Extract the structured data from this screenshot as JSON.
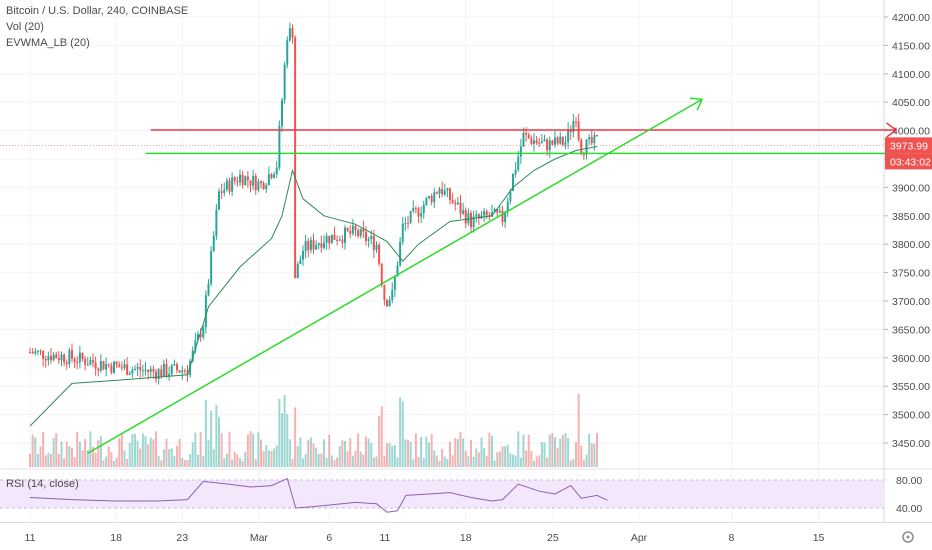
{
  "legend": {
    "title": "Bitcoin / U.S. Dollar, 240, COINBASE",
    "volume": "Vol (20)",
    "evwma": "EVWMA_LB (20)",
    "rsi": "RSI (14, close)"
  },
  "last_price": {
    "value": "3973.99",
    "countdown": "03:43:02"
  },
  "colors": {
    "up": "#26a69a",
    "down": "#ef5350",
    "resistance": "#f23645",
    "support": "#2bdc2b",
    "rsi_band": "#f3e8fb",
    "rsi_line": "#8e5fb5",
    "price_tag": "#ef5350"
  },
  "chart_data": [
    {
      "type": "candlestick",
      "title": "Bitcoin / U.S. Dollar, 240, COINBASE",
      "price_ticks": [
        "4200.00",
        "4150.00",
        "4100.00",
        "4050.00",
        "4000.00",
        "3950.00",
        "3900.00",
        "3850.00",
        "3800.00",
        "3750.00",
        "3700.00",
        "3650.00",
        "3600.00",
        "3550.00",
        "3500.00",
        "3450.00"
      ],
      "ylim": [
        3430,
        4215
      ],
      "date_ticks": [
        "11",
        "18",
        "23",
        "Mar",
        "6",
        "11",
        "18",
        "25",
        "Apr",
        "8",
        "15"
      ],
      "price_path": [
        {
          "t": 0.0,
          "p": 3610
        },
        {
          "t": 4.0,
          "p": 3600
        },
        {
          "t": 8.0,
          "p": 3585
        },
        {
          "t": 12.0,
          "p": 3575
        },
        {
          "t": 15.0,
          "p": 3580
        },
        {
          "t": 16.5,
          "p": 3660
        },
        {
          "t": 18.0,
          "p": 3890
        },
        {
          "t": 20.0,
          "p": 3920
        },
        {
          "t": 22.0,
          "p": 3905
        },
        {
          "t": 23.5,
          "p": 3940
        },
        {
          "t": 24.5,
          "p": 4170
        },
        {
          "t": 25.0,
          "p": 4175
        },
        {
          "t": 25.2,
          "p": 3740
        },
        {
          "t": 26.0,
          "p": 3790
        },
        {
          "t": 28.0,
          "p": 3810
        },
        {
          "t": 31.0,
          "p": 3820
        },
        {
          "t": 33.0,
          "p": 3800
        },
        {
          "t": 33.8,
          "p": 3700
        },
        {
          "t": 34.5,
          "p": 3710
        },
        {
          "t": 35.5,
          "p": 3830
        },
        {
          "t": 37.0,
          "p": 3860
        },
        {
          "t": 39.0,
          "p": 3900
        },
        {
          "t": 40.5,
          "p": 3870
        },
        {
          "t": 42.0,
          "p": 3840
        },
        {
          "t": 44.0,
          "p": 3850
        },
        {
          "t": 45.0,
          "p": 3845
        },
        {
          "t": 46.0,
          "p": 3920
        },
        {
          "t": 47.0,
          "p": 3990
        },
        {
          "t": 49.0,
          "p": 3975
        },
        {
          "t": 51.0,
          "p": 3980
        },
        {
          "t": 52.0,
          "p": 4030
        },
        {
          "t": 52.4,
          "p": 3970
        },
        {
          "t": 54.0,
          "p": 3980
        },
        {
          "t": 54.2,
          "p": 3974
        }
      ],
      "evwma_path": [
        {
          "t": 0.0,
          "p": 3480
        },
        {
          "t": 4.0,
          "p": 3555
        },
        {
          "t": 8.0,
          "p": 3560
        },
        {
          "t": 15.0,
          "p": 3570
        },
        {
          "t": 17.0,
          "p": 3690
        },
        {
          "t": 20.0,
          "p": 3760
        },
        {
          "t": 23.0,
          "p": 3810
        },
        {
          "t": 24.0,
          "p": 3850
        },
        {
          "t": 25.0,
          "p": 3930
        },
        {
          "t": 26.0,
          "p": 3880
        },
        {
          "t": 28.0,
          "p": 3850
        },
        {
          "t": 31.0,
          "p": 3835
        },
        {
          "t": 34.0,
          "p": 3805
        },
        {
          "t": 35.5,
          "p": 3770
        },
        {
          "t": 37.0,
          "p": 3800
        },
        {
          "t": 40.0,
          "p": 3840
        },
        {
          "t": 44.0,
          "p": 3850
        },
        {
          "t": 46.0,
          "p": 3900
        },
        {
          "t": 48.0,
          "p": 3930
        },
        {
          "t": 50.0,
          "p": 3950
        },
        {
          "t": 52.0,
          "p": 3965
        },
        {
          "t": 54.0,
          "p": 3972
        }
      ],
      "volume_range": [
        0,
        1
      ]
    },
    {
      "type": "line",
      "name": "RSI (14, close)",
      "y_ticks": [
        "80.00",
        "40.00"
      ],
      "ylim": [
        30,
        90
      ],
      "band": [
        40,
        80
      ],
      "path": [
        {
          "t": 0.0,
          "v": 55
        },
        {
          "t": 4.0,
          "v": 52
        },
        {
          "t": 8.0,
          "v": 50
        },
        {
          "t": 12.0,
          "v": 50
        },
        {
          "t": 15.0,
          "v": 52
        },
        {
          "t": 16.5,
          "v": 78
        },
        {
          "t": 19.0,
          "v": 74
        },
        {
          "t": 21.0,
          "v": 70
        },
        {
          "t": 23.0,
          "v": 72
        },
        {
          "t": 24.5,
          "v": 82
        },
        {
          "t": 25.3,
          "v": 40
        },
        {
          "t": 27.0,
          "v": 42
        },
        {
          "t": 31.0,
          "v": 48
        },
        {
          "t": 33.0,
          "v": 46
        },
        {
          "t": 34.0,
          "v": 34
        },
        {
          "t": 35.0,
          "v": 36
        },
        {
          "t": 35.8,
          "v": 58
        },
        {
          "t": 38.0,
          "v": 60
        },
        {
          "t": 40.0,
          "v": 62
        },
        {
          "t": 42.0,
          "v": 55
        },
        {
          "t": 44.0,
          "v": 50
        },
        {
          "t": 45.0,
          "v": 52
        },
        {
          "t": 46.5,
          "v": 74
        },
        {
          "t": 48.5,
          "v": 64
        },
        {
          "t": 50.0,
          "v": 60
        },
        {
          "t": 51.5,
          "v": 72
        },
        {
          "t": 52.5,
          "v": 54
        },
        {
          "t": 54.0,
          "v": 58
        },
        {
          "t": 55.0,
          "v": 51
        }
      ]
    }
  ],
  "drawings": [
    {
      "name": "resistance-line",
      "color": "#f23645",
      "from": {
        "t": 11.5,
        "p": 4001
      },
      "to": {
        "t": 82.5,
        "p": 4001
      }
    },
    {
      "name": "support-line",
      "color": "#2bdc2b",
      "from": {
        "t": 11.0,
        "p": 3960
      },
      "to": {
        "t": 82.5,
        "p": 3960
      }
    },
    {
      "name": "ascending-trendline",
      "color": "#2bdc2b",
      "from": {
        "t": 5.5,
        "p": 3432
      },
      "to": {
        "t": 64.0,
        "p": 4055
      }
    }
  ]
}
